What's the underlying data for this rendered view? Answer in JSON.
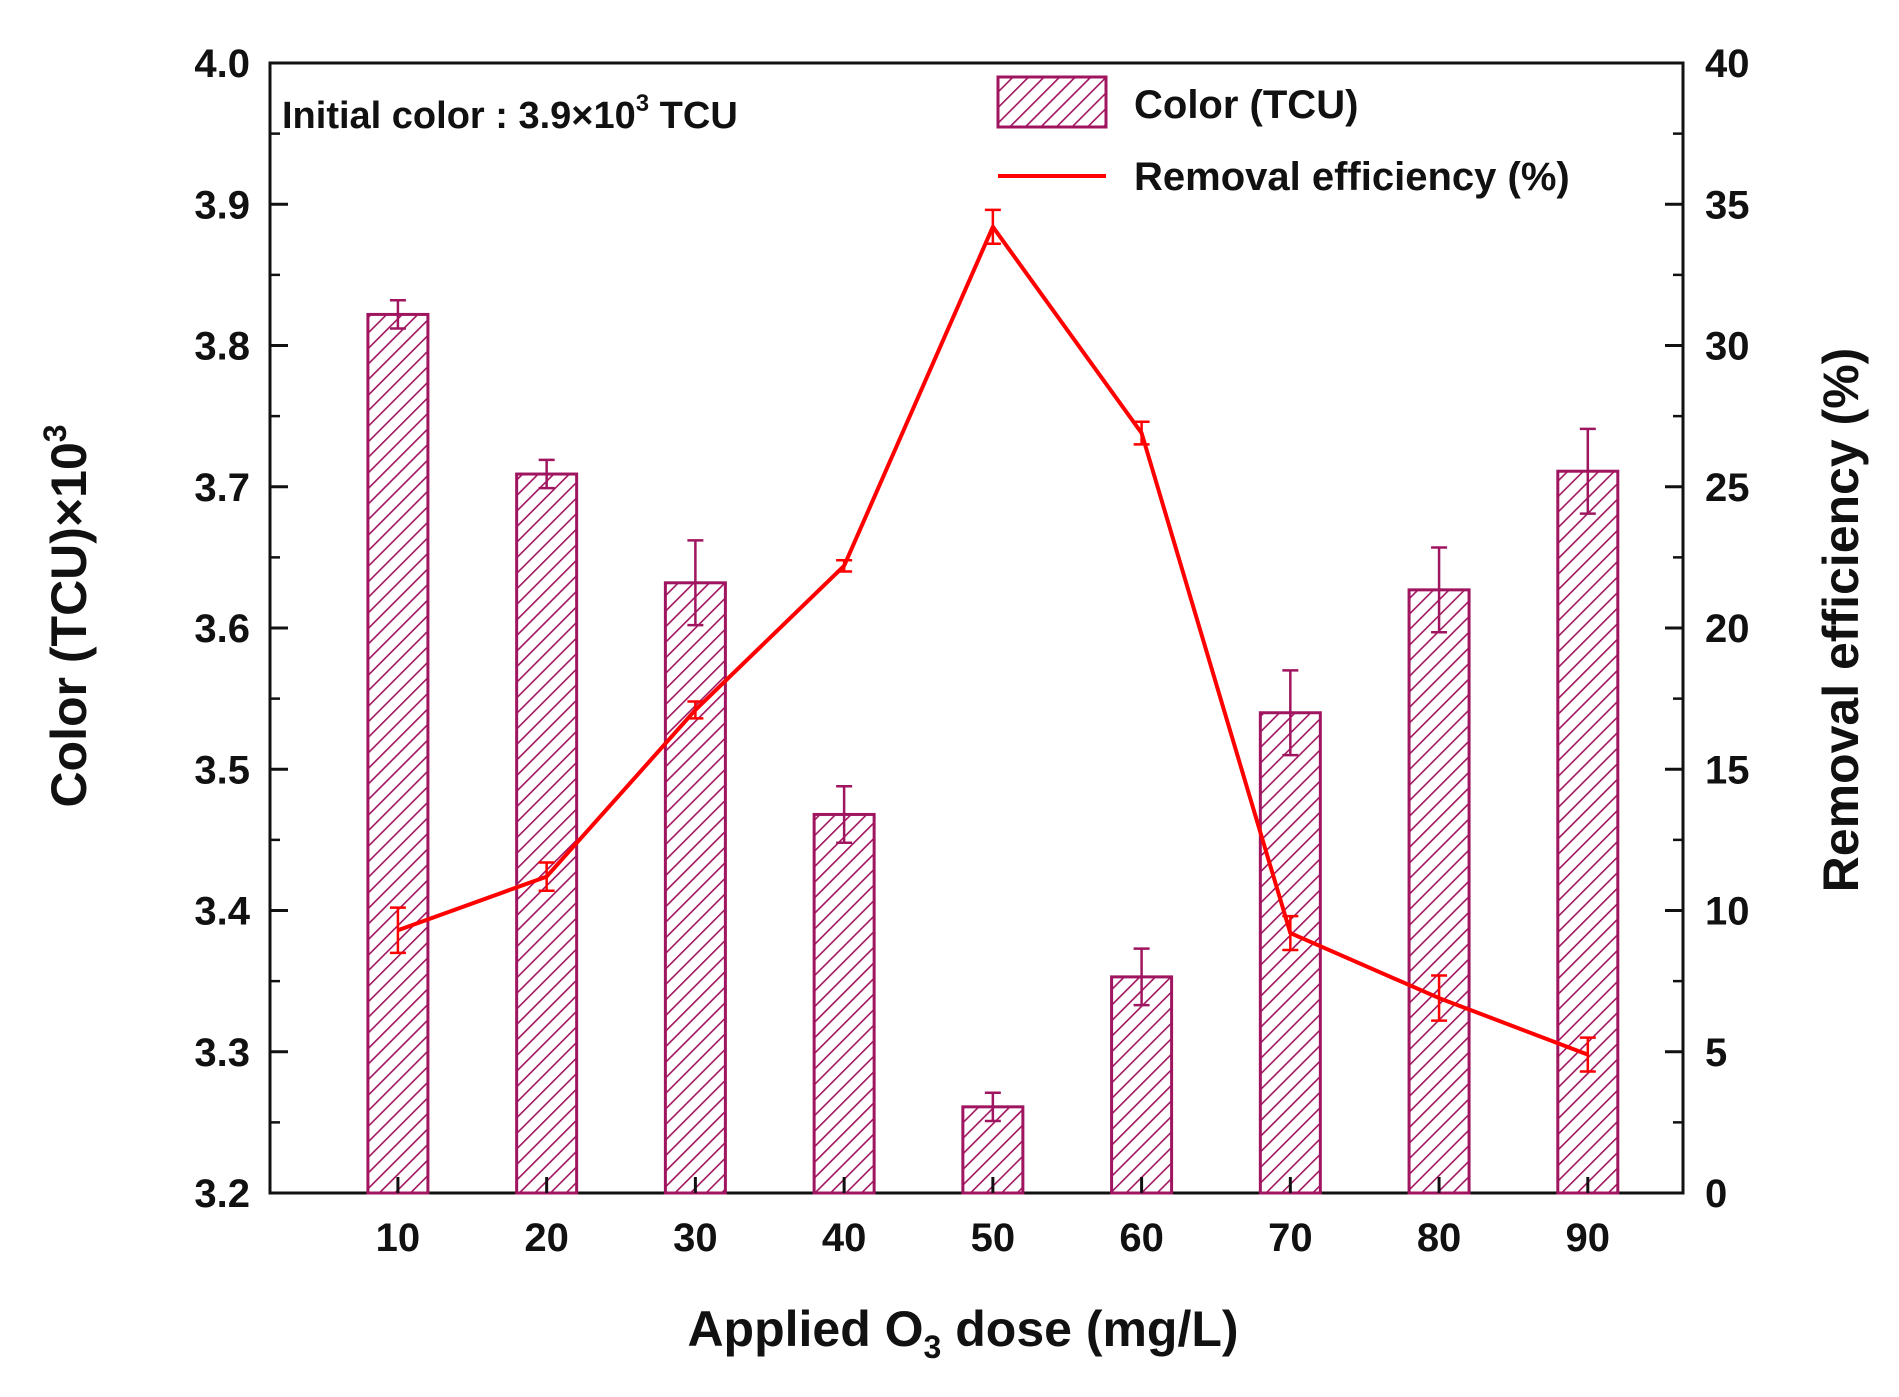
{
  "chart_data": {
    "type": "bar+line",
    "annotation": {
      "prefix": "Initial color : 3.9×10",
      "sup": "3",
      "suffix": " TCU"
    },
    "x_axis": {
      "title_prefix": "Applied O",
      "title_sub": "3",
      "title_suffix": " dose (mg/L)",
      "categories": [
        "10",
        "20",
        "30",
        "40",
        "50",
        "60",
        "70",
        "80",
        "90"
      ]
    },
    "y_left": {
      "title_main": "Color (TCU)×10",
      "title_sup": "3",
      "ylim": [
        3.2,
        4.0
      ],
      "ticks": [
        "3.2",
        "3.3",
        "3.4",
        "3.5",
        "3.6",
        "3.7",
        "3.8",
        "3.9",
        "4.0"
      ]
    },
    "y_right": {
      "title": "Removal efficiency (%)",
      "ylim": [
        0,
        40
      ],
      "ticks": [
        "0",
        "5",
        "10",
        "15",
        "20",
        "25",
        "30",
        "35",
        "40"
      ]
    },
    "series": [
      {
        "name": "Color (TCU)",
        "kind": "bar",
        "axis": "left",
        "color": "#a0155f",
        "values": [
          3.822,
          3.709,
          3.632,
          3.468,
          3.261,
          3.353,
          3.54,
          3.627,
          3.711
        ],
        "errors": [
          0.01,
          0.01,
          0.03,
          0.02,
          0.01,
          0.02,
          0.03,
          0.03,
          0.03
        ]
      },
      {
        "name": "Removal efficiency (%)",
        "kind": "line",
        "axis": "right",
        "color": "#ff0000",
        "values": [
          9.3,
          11.2,
          17.1,
          22.2,
          34.2,
          26.9,
          9.2,
          6.9,
          4.9
        ],
        "errors": [
          0.8,
          0.5,
          0.3,
          0.2,
          0.6,
          0.4,
          0.6,
          0.8,
          0.6
        ]
      }
    ],
    "legend": {
      "position": "top-right"
    },
    "grid": false
  }
}
